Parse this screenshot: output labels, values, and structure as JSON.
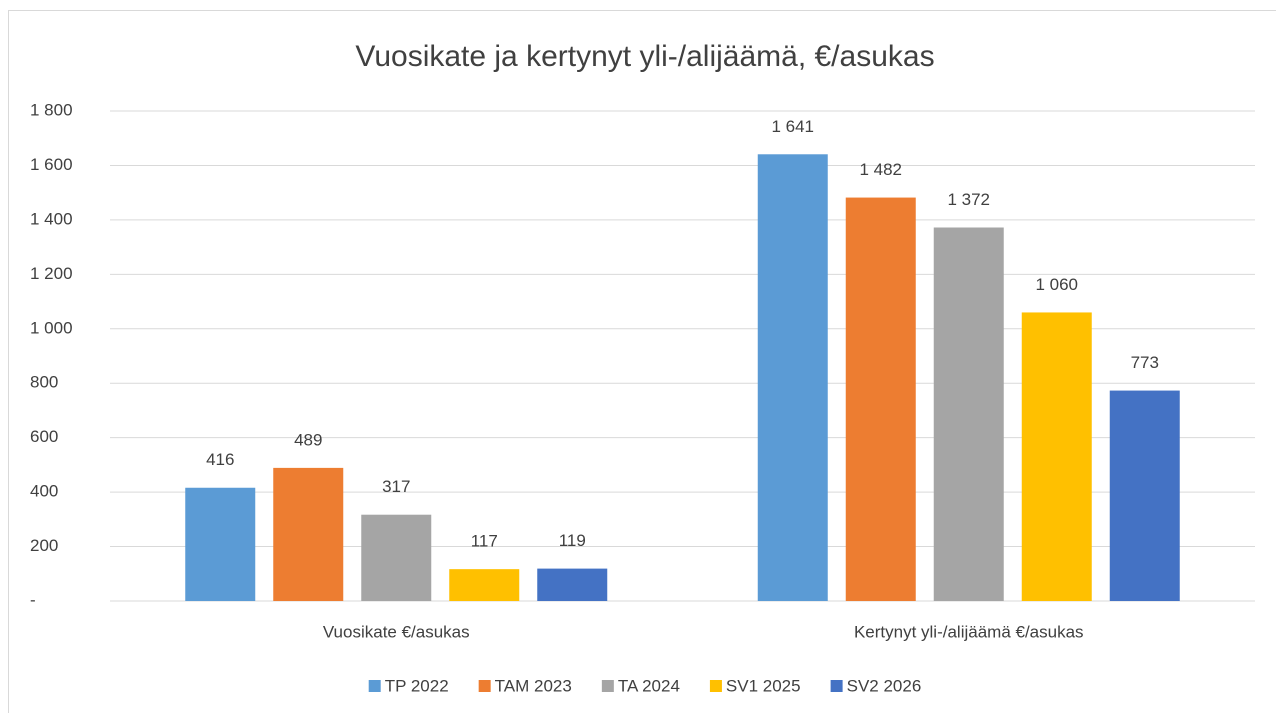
{
  "chart_data": {
    "type": "bar",
    "title": "Vuosikate ja kertynyt yli-/alijäämä, €/asukas",
    "categories": [
      "Vuosikate  €/asukas",
      "Kertynyt yli-/alijäämä €/asukas"
    ],
    "series": [
      {
        "name": "TP 2022",
        "color": "#5b9bd5",
        "values": [
          416,
          1641
        ],
        "value_labels": [
          "416",
          "1 641"
        ]
      },
      {
        "name": "TAM 2023",
        "color": "#ed7d31",
        "values": [
          489,
          1482
        ],
        "value_labels": [
          "489",
          "1 482"
        ]
      },
      {
        "name": "TA 2024",
        "color": "#a5a5a5",
        "values": [
          317,
          1372
        ],
        "value_labels": [
          "317",
          "1 372"
        ]
      },
      {
        "name": "SV1 2025",
        "color": "#ffc000",
        "values": [
          117,
          1060
        ],
        "value_labels": [
          "117",
          "1 060"
        ]
      },
      {
        "name": "SV2 2026",
        "color": "#4472c4",
        "values": [
          119,
          773
        ],
        "value_labels": [
          "119",
          "773"
        ]
      }
    ],
    "ylim": [
      0,
      1800
    ],
    "yticks": [
      {
        "value": 0,
        "label": "-"
      },
      200,
      400,
      600,
      800,
      {
        "value": 1000,
        "label": "1 000"
      },
      {
        "value": 1200,
        "label": "1 200"
      },
      {
        "value": 1400,
        "label": "1 400"
      },
      {
        "value": 1600,
        "label": "1 600"
      },
      {
        "value": 1800,
        "label": "1 800"
      }
    ],
    "grid": true,
    "legend": "bottom"
  }
}
